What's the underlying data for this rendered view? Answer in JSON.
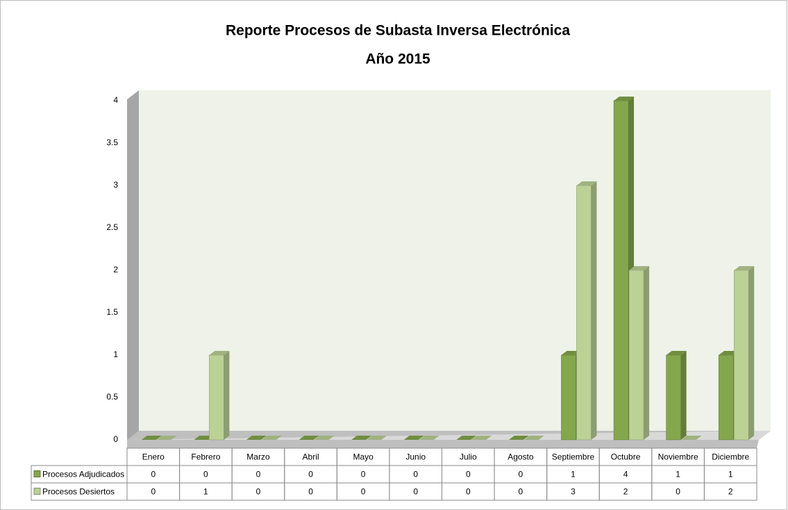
{
  "chart_data": {
    "type": "bar3d",
    "title": "Reporte Procesos de Subasta Inversa Electrónica",
    "subtitle": "Año 2015",
    "categories": [
      "Enero",
      "Febrero",
      "Marzo",
      "Abril",
      "Mayo",
      "Junio",
      "Julio",
      "Agosto",
      "Septiembre",
      "Octubre",
      "Noviembre",
      "Diciembre"
    ],
    "series": [
      {
        "name": "Procesos Adjudicados",
        "color": "#84a74d",
        "values": [
          0,
          0,
          0,
          0,
          0,
          0,
          0,
          0,
          1,
          4,
          1,
          1
        ]
      },
      {
        "name": "Procesos Desiertos",
        "color": "#bcd196",
        "values": [
          0,
          1,
          0,
          0,
          0,
          0,
          0,
          0,
          3,
          2,
          0,
          2
        ]
      }
    ],
    "ylim": [
      0,
      4
    ],
    "yticks": [
      0,
      0.5,
      1,
      1.5,
      2,
      2.5,
      3,
      3.5,
      4
    ]
  }
}
